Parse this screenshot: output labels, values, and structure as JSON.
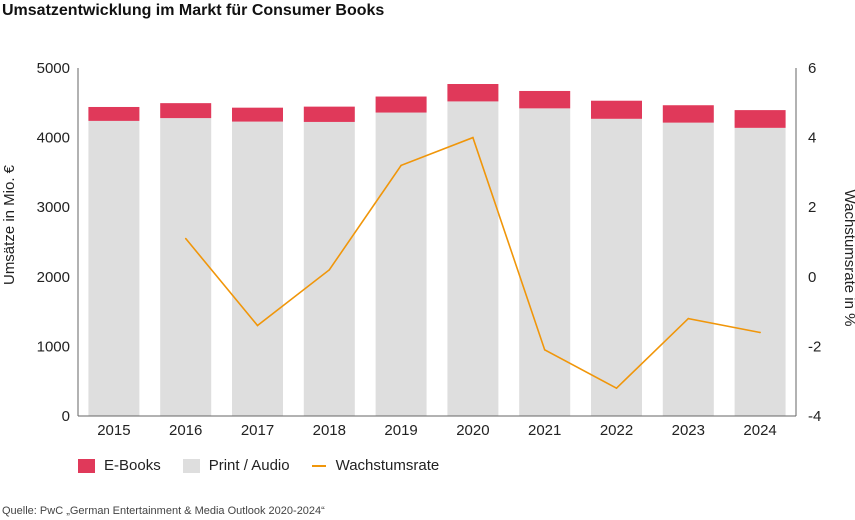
{
  "title": "Umsatzentwicklung im Markt für Consumer Books",
  "source": "Quelle: PwC „German Entertainment & Media Outlook 2020-2024“",
  "colors": {
    "ebooks": "#e0395a",
    "print": "#dedede",
    "growth": "#f0960a"
  },
  "chart_data": {
    "type": "bar",
    "stacked": true,
    "categories": [
      "2015",
      "2016",
      "2017",
      "2018",
      "2019",
      "2020",
      "2021",
      "2022",
      "2023",
      "2024"
    ],
    "series": [
      {
        "name": "Print / Audio",
        "axis": "left",
        "values": [
          4240,
          4280,
          4230,
          4225,
          4360,
          4520,
          4420,
          4270,
          4215,
          4140
        ]
      },
      {
        "name": "E-Books",
        "axis": "left",
        "values": [
          200,
          215,
          200,
          220,
          230,
          250,
          250,
          260,
          250,
          255
        ]
      },
      {
        "name": "Wachstumsrate",
        "type": "line",
        "axis": "right",
        "values": [
          null,
          1.1,
          -1.4,
          0.2,
          3.2,
          4.0,
          -2.1,
          -3.2,
          -1.2,
          -1.6
        ]
      }
    ],
    "ylabel": "Umsätze in Mio. €",
    "y2label": "Wachstumsrate in %",
    "ylim": [
      0,
      5000
    ],
    "y2lim": [
      -4,
      6
    ],
    "yticks": [
      "0",
      "1000",
      "2000",
      "3000",
      "4000",
      "5000"
    ],
    "y2ticks": [
      "-4",
      "-2",
      "0",
      "2",
      "4",
      "6"
    ],
    "grid": false,
    "legend": "bottom-left"
  },
  "legend": {
    "ebooks": "E-Books",
    "print": "Print / Audio",
    "growth": "Wachstumsrate"
  }
}
